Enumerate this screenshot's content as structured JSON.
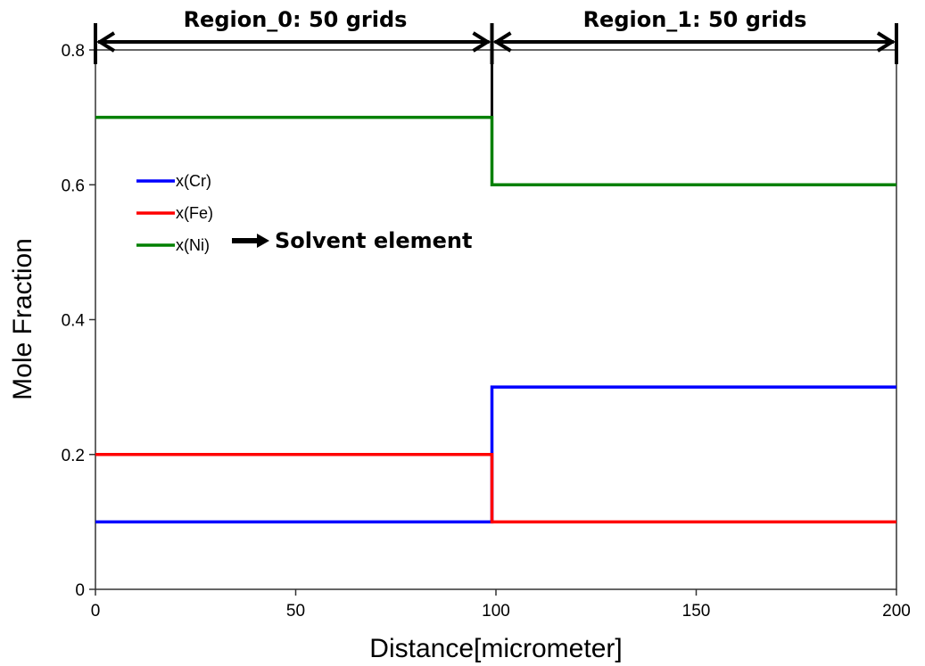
{
  "chart_data": {
    "type": "line",
    "title": "",
    "xlabel": "Distance[micrometer]",
    "ylabel": "Mole Fraction",
    "xlim": [
      0,
      200
    ],
    "ylim": [
      0,
      0.8
    ],
    "xticks": [
      0,
      50,
      100,
      150,
      200
    ],
    "xtick_labels": [
      "0",
      "50",
      "100",
      "150",
      "200"
    ],
    "yticks": [
      0,
      0.2,
      0.4,
      0.6,
      0.8
    ],
    "ytick_labels": [
      "0",
      "0.2",
      "0.4",
      "0.6",
      "0.8"
    ],
    "grid": false,
    "legend_position": "upper-left",
    "step_x": 99,
    "series": [
      {
        "name": "x(Cr)",
        "color": "#0000ff",
        "x": [
          0,
          99,
          99,
          200
        ],
        "y": [
          0.1,
          0.1,
          0.3,
          0.3
        ]
      },
      {
        "name": "x(Fe)",
        "color": "#ff0000",
        "x": [
          0,
          99,
          99,
          200
        ],
        "y": [
          0.2,
          0.2,
          0.1,
          0.1
        ]
      },
      {
        "name": "x(Ni)",
        "color": "#008000",
        "x": [
          0,
          99,
          99,
          200
        ],
        "y": [
          0.7,
          0.7,
          0.6,
          0.6
        ]
      }
    ],
    "annotations": {
      "regions": [
        {
          "label": "Region_0: 50 grids",
          "from": 0,
          "to": 99
        },
        {
          "label": "Region_1: 50 grids",
          "from": 99,
          "to": 200
        }
      ],
      "solvent_note": "Solvent element"
    }
  }
}
